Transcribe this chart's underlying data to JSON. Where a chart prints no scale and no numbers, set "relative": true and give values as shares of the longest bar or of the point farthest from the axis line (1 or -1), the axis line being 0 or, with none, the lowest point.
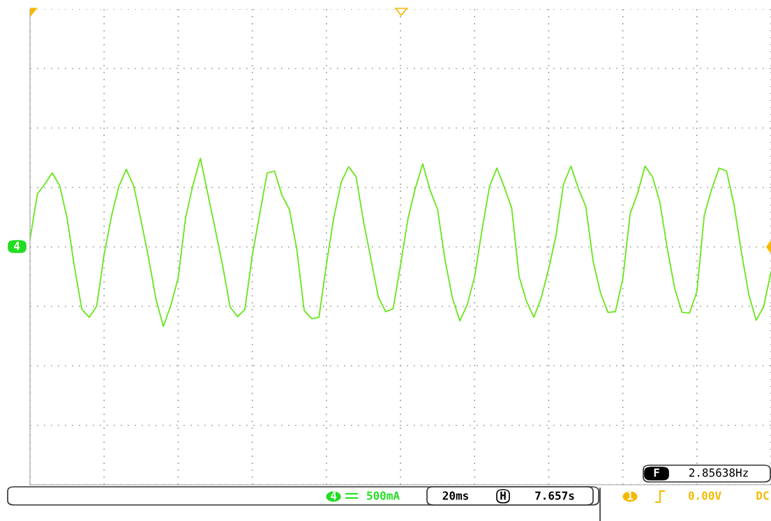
{
  "chart_data": {
    "type": "line",
    "relative": true,
    "tick_labels": false,
    "grid": true,
    "categories": [
      null,
      null,
      null,
      null,
      null,
      null,
      null,
      null,
      null,
      null,
      null,
      null,
      null,
      null,
      null,
      null,
      null,
      null,
      null,
      null,
      null,
      null,
      null,
      null,
      null,
      null,
      null,
      null,
      null,
      null,
      null,
      null,
      null,
      null,
      null,
      null,
      null,
      null,
      null,
      null,
      null,
      null,
      null,
      null,
      null,
      null,
      null,
      null,
      null,
      null,
      null,
      null,
      null,
      null,
      null,
      null,
      null,
      null,
      null,
      null,
      null,
      null,
      null,
      null,
      null,
      null,
      null,
      null,
      null,
      null,
      null,
      null,
      null,
      null,
      null,
      null,
      null,
      null,
      null,
      null,
      null,
      null,
      null,
      null,
      null,
      null,
      null,
      null,
      null,
      null,
      null,
      null,
      null,
      null,
      null,
      null,
      null,
      null,
      null,
      null,
      null
    ],
    "series": [
      {
        "color": "#66e619",
        "values": [
          0.752,
          0.891,
          0.921,
          0.955,
          0.917,
          0.818,
          0.667,
          0.537,
          0.513,
          0.547,
          0.705,
          0.823,
          0.915,
          0.966,
          0.915,
          0.808,
          0.695,
          0.568,
          0.485,
          0.549,
          0.634,
          0.818,
          0.919,
          1,
          0.891,
          0.782,
          0.671,
          0.545,
          0.515,
          0.537,
          0.703,
          0.829,
          0.955,
          0.961,
          0.887,
          0.844,
          0.722,
          0.534,
          0.509,
          0.513,
          0.675,
          0.818,
          0.927,
          0.974,
          0.944,
          0.808,
          0.692,
          0.575,
          0.53,
          0.539,
          0.673,
          0.814,
          0.908,
          0.983,
          0.902,
          0.844,
          0.69,
          0.573,
          0.502,
          0.551,
          0.637,
          0.78,
          0.912,
          0.97,
          0.912,
          0.848,
          0.639,
          0.562,
          0.513,
          0.573,
          0.662,
          0.765,
          0.921,
          0.976,
          0.908,
          0.853,
          0.684,
          0.587,
          0.528,
          0.53,
          0.63,
          0.831,
          0.893,
          0.976,
          0.944,
          0.866,
          0.724,
          0.602,
          0.528,
          0.526,
          0.592,
          0.827,
          0.906,
          0.97,
          0.961,
          0.859,
          0.714,
          0.583,
          0.504,
          0.545,
          0.652
        ]
      }
    ],
    "annotations": [
      "4",
      "2.85638Hz",
      "F",
      "4",
      "500mA",
      "20ms",
      "H",
      "7.657s",
      "1",
      "0.00V",
      "DC"
    ]
  }
}
